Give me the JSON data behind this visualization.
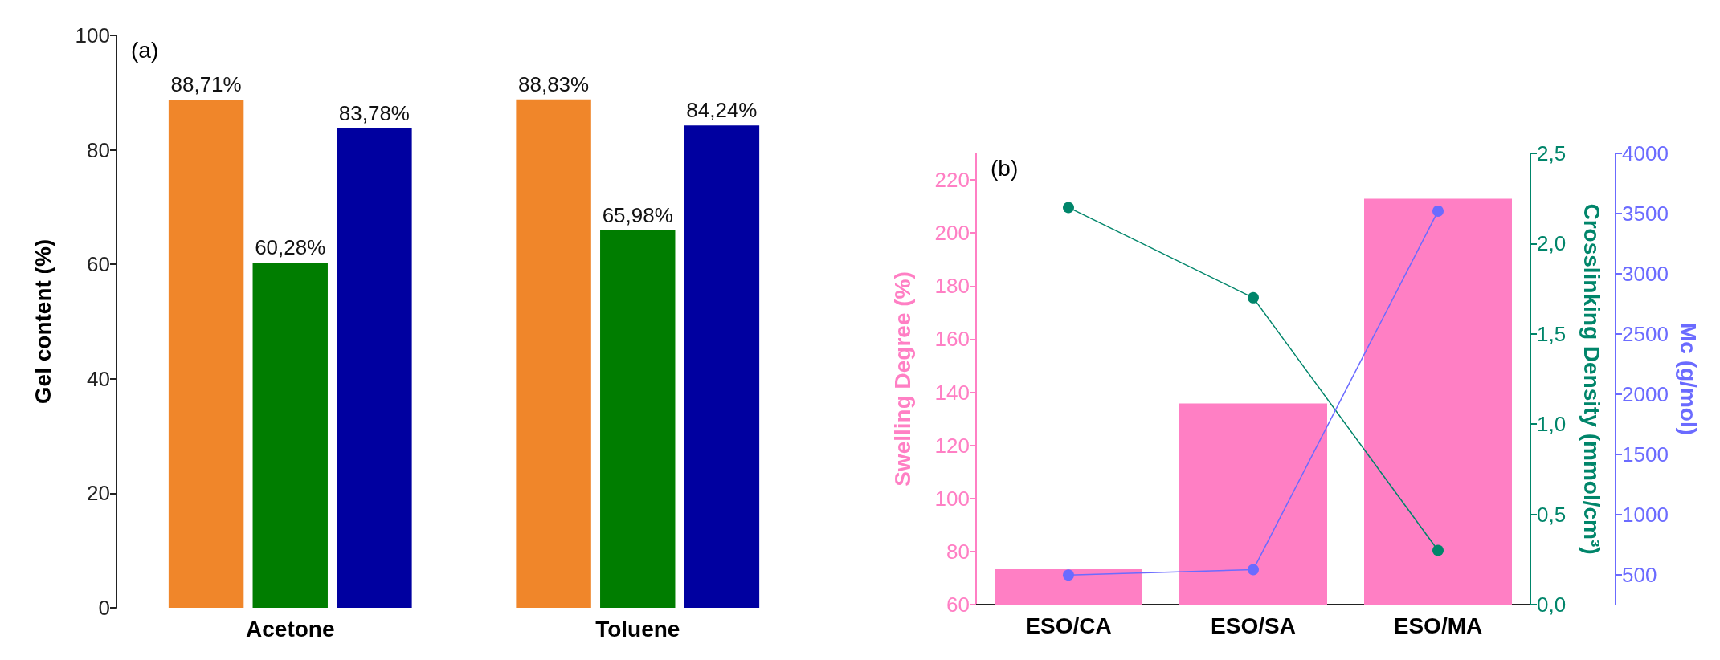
{
  "chart_data": [
    {
      "type": "bar",
      "ylabel": "Gel content (%)",
      "annotations": [
        "(a)"
      ],
      "categories": [
        "Acetone",
        "Toluene"
      ],
      "ylim": [
        0,
        100
      ],
      "yticks": [
        0,
        20,
        40,
        60,
        80,
        100
      ],
      "series": [
        {
          "color": "#f0862a",
          "values": [
            88.71,
            88.83
          ],
          "value_labels": [
            "88,71%",
            "88,83%"
          ]
        },
        {
          "color": "#007d00",
          "values": [
            60.28,
            65.98
          ],
          "value_labels": [
            "60,28%",
            "65,98%"
          ]
        },
        {
          "color": "#0000a0",
          "values": [
            83.78,
            84.24
          ],
          "value_labels": [
            "83,78%",
            "84,24%"
          ]
        }
      ]
    },
    {
      "type": "bar",
      "ylabel": "Swelling Degree (%)",
      "y2label": "Crosslinking Density (mmol/cm³)",
      "y3label": "Mc (g/mol)",
      "annotations": [
        "(b)"
      ],
      "categories": [
        "ESO/CA",
        "ESO/SA",
        "ESO/MA"
      ],
      "marker": "circle",
      "line_style": "solid",
      "ylim": [
        60,
        230
      ],
      "yticks": [
        60,
        80,
        100,
        120,
        140,
        160,
        180,
        200,
        220
      ],
      "y2lim": [
        0,
        2.5
      ],
      "y2ticks": [
        {
          "value": 0,
          "label": "0,0"
        },
        {
          "value": 0.5,
          "label": "0,5"
        },
        {
          "value": 1,
          "label": "1,0"
        },
        {
          "value": 1.5,
          "label": "1,5"
        },
        {
          "value": 2,
          "label": "2,0"
        },
        {
          "value": 2.5,
          "label": "2,5"
        }
      ],
      "y3lim": [
        250,
        4000
      ],
      "y3ticks": [
        500,
        1000,
        1500,
        2000,
        2500,
        3000,
        3500,
        4000
      ],
      "series": [
        {
          "color": "#ff7fc4",
          "values": [
            73.3,
            135.8,
            212.9
          ]
        },
        {
          "type": "line",
          "axis": "y2",
          "color": "#00856a",
          "values": [
            2.2,
            1.7,
            0.3
          ]
        },
        {
          "type": "line",
          "axis": "y3",
          "color": "#6b6bff",
          "values": [
            495,
            540,
            3520
          ]
        }
      ]
    }
  ]
}
